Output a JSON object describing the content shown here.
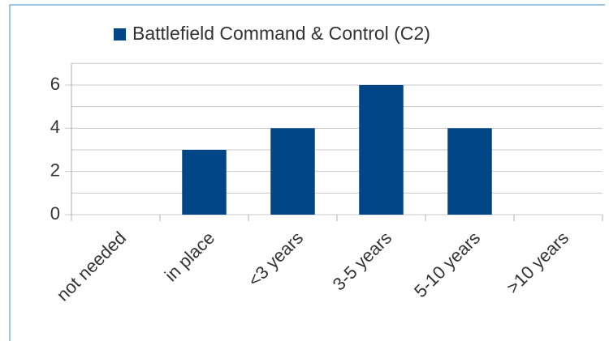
{
  "chart_data": {
    "type": "bar",
    "legend_label": "Battlefield Command & Control (C2)",
    "categories": [
      "not needed",
      "in place",
      "<3 years",
      "3-5 years",
      "5-10 years",
      ">10 years"
    ],
    "values": [
      0,
      3,
      4,
      6,
      4,
      0
    ],
    "color": "#004586",
    "ylim": [
      0,
      7
    ],
    "yticks": [
      0,
      2,
      4,
      6
    ],
    "minor_yticks": [
      1,
      3,
      5,
      7
    ],
    "grid": true
  }
}
